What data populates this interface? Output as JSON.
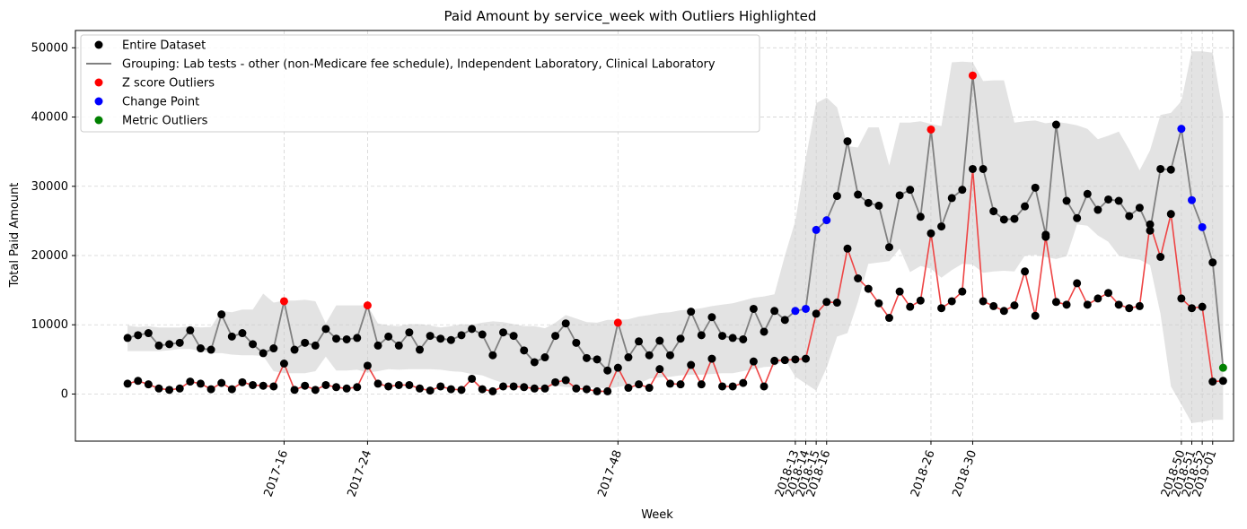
{
  "chart_data": {
    "type": "line",
    "title": "Paid Amount by service_week with Outliers Highlighted",
    "xlabel": "Week",
    "ylabel": "Total Paid Amount",
    "ylim": [
      -6800,
      52500
    ],
    "yticks": [
      0,
      10000,
      20000,
      30000,
      40000,
      50000
    ],
    "x_index_range": [
      -5,
      106
    ],
    "grid": true,
    "legend_position": "top-left",
    "colors": {
      "entire": "#000000",
      "grouping_line": "#808080",
      "subset_line": "#ee4444",
      "zscore": "#ff0000",
      "changepoint": "#0000ff",
      "metric": "#008000",
      "band": "#cccccc"
    },
    "legend": [
      {
        "label": "Entire Dataset",
        "kind": "marker",
        "color": "#000000"
      },
      {
        "label": "Grouping: Lab tests - other (non-Medicare fee schedule), Independent Laboratory, Clinical Laboratory",
        "kind": "line",
        "color": "#808080"
      },
      {
        "label": "Z score Outliers",
        "kind": "marker",
        "color": "#ff0000"
      },
      {
        "label": "Change Point",
        "kind": "marker",
        "color": "#0000ff"
      },
      {
        "label": "Metric Outliers",
        "kind": "marker",
        "color": "#008000"
      }
    ],
    "x_ticks": [
      {
        "index": 15,
        "label": "2017-16"
      },
      {
        "index": 23,
        "label": "2017-24"
      },
      {
        "index": 47,
        "label": "2017-48"
      },
      {
        "index": 64,
        "label": "2018-13"
      },
      {
        "index": 65,
        "label": "2018-14"
      },
      {
        "index": 66,
        "label": "2018-15"
      },
      {
        "index": 67,
        "label": "2018-16"
      },
      {
        "index": 77,
        "label": "2018-26"
      },
      {
        "index": 81,
        "label": "2018-30"
      },
      {
        "index": 101,
        "label": "2018-50"
      },
      {
        "index": 102,
        "label": "2018-51"
      },
      {
        "index": 103,
        "label": "2018-52"
      },
      {
        "index": 104,
        "label": "2019-01"
      }
    ],
    "entire_dataset": [
      8100,
      8500,
      8800,
      7000,
      7200,
      7400,
      9200,
      6600,
      6400,
      11500,
      8300,
      8800,
      7200,
      5900,
      6600,
      13400,
      6400,
      7400,
      7000,
      9400,
      8000,
      7900,
      8100,
      12800,
      7000,
      8300,
      7000,
      8900,
      6400,
      8400,
      8000,
      7800,
      8500,
      9400,
      8600,
      5600,
      8900,
      8400,
      6300,
      4600,
      5300,
      8400,
      10200,
      7400,
      5200,
      5000,
      3400,
      10300,
      5300,
      7600,
      5600,
      7700,
      5600,
      8000,
      11900,
      8500,
      11100,
      8400,
      8100,
      7900,
      12300,
      9000,
      12000,
      10700,
      12000,
      12300,
      23700,
      25100,
      28600,
      36500,
      28800,
      27600,
      27200,
      21200,
      28700,
      29500,
      25600,
      38200,
      24200,
      28300,
      29500,
      46000,
      32500,
      26400,
      25200,
      25300,
      27100,
      29800,
      23000,
      38900,
      27900,
      25400,
      28900,
      26600,
      28100,
      27900,
      25700,
      26900,
      23600,
      32500,
      32400,
      38300,
      28000,
      24100,
      19000,
      3800
    ],
    "grouping_series": [
      1500,
      1900,
      1400,
      800,
      600,
      800,
      1800,
      1500,
      700,
      1600,
      700,
      1700,
      1300,
      1200,
      1100,
      4400,
      600,
      1200,
      600,
      1300,
      1000,
      800,
      1000,
      4100,
      1500,
      1100,
      1300,
      1300,
      800,
      500,
      1100,
      700,
      600,
      2200,
      700,
      400,
      1100,
      1100,
      1000,
      800,
      800,
      1700,
      2000,
      800,
      700,
      400,
      400,
      3800,
      900,
      1400,
      900,
      3600,
      1500,
      1400,
      4200,
      1400,
      5100,
      1100,
      1100,
      1600,
      4700,
      1100,
      4800,
      4900,
      5000,
      5100,
      11600,
      13300,
      13200,
      21000,
      16700,
      15200,
      13100,
      11000,
      14800,
      12600,
      13500,
      23200,
      12400,
      13400,
      14800,
      32500,
      13400,
      12700,
      12000,
      12800,
      17700,
      11300,
      22700,
      13300,
      12900,
      16000,
      12900,
      13800,
      14600,
      12900,
      12400,
      12700,
      24500,
      19800,
      26000,
      13800,
      12400,
      12600,
      1800,
      1900
    ],
    "band": {
      "start_index": 0,
      "upper": [
        9900,
        9700,
        9800,
        9600,
        9600,
        9600,
        9800,
        9600,
        9700,
        12000,
        11800,
        12200,
        12200,
        14500,
        13200,
        13500,
        13500,
        13600,
        13400,
        10200,
        12800,
        12800,
        12800,
        12800,
        10200,
        9900,
        9800,
        10100,
        10100,
        9900,
        9600,
        9800,
        10100,
        10000,
        10300,
        10500,
        10400,
        10100,
        9800,
        9800,
        9500,
        10300,
        11400,
        10900,
        10400,
        10300,
        10700,
        10700,
        10800,
        11200,
        11400,
        11700,
        11800,
        12100,
        12200,
        12400,
        12700,
        12900,
        13100,
        13500,
        13900,
        14100,
        14400,
        20000,
        25000,
        34000,
        42000,
        42800,
        41400,
        35800,
        35600,
        38500,
        38500,
        33000,
        39200,
        39200,
        39400,
        39000,
        38700,
        47900,
        48000,
        47900,
        45200,
        45300,
        45300,
        39200,
        39400,
        39500,
        39100,
        39300,
        39100,
        38800,
        38300,
        36800,
        37300,
        37900,
        35300,
        32300,
        35200,
        40300,
        40600,
        42300,
        49500,
        49500,
        49300,
        40500
      ],
      "lower": [
        6200,
        6200,
        6200,
        6200,
        6300,
        6500,
        6500,
        6200,
        5900,
        5900,
        5700,
        5600,
        5600,
        5500,
        3300,
        3000,
        3000,
        3000,
        3300,
        5400,
        3400,
        3400,
        3500,
        3100,
        3300,
        3600,
        3500,
        3600,
        3600,
        3600,
        3500,
        3300,
        3200,
        2900,
        2700,
        2100,
        1600,
        1300,
        1100,
        1100,
        1000,
        1200,
        1000,
        1000,
        1000,
        900,
        800,
        1000,
        1300,
        1500,
        2200,
        2400,
        2500,
        2700,
        2800,
        2800,
        2900,
        3000,
        3000,
        3300,
        3600,
        3900,
        4000,
        5000,
        2500,
        1500,
        500,
        3800,
        8300,
        8800,
        13300,
        18800,
        19000,
        19200,
        21000,
        17600,
        18500,
        18100,
        16800,
        17900,
        18800,
        18700,
        17500,
        17700,
        17800,
        17700,
        20000,
        20100,
        19800,
        19500,
        19900,
        24500,
        24300,
        22900,
        22000,
        20000,
        19600,
        19400,
        18600,
        11600,
        1100,
        -1500,
        -4200,
        -4000,
        -3700,
        -3700
      ]
    },
    "zscore_outliers": [
      15,
      23,
      47,
      77,
      81
    ],
    "change_points": [
      64,
      65,
      66,
      67,
      101,
      102,
      103
    ],
    "metric_outliers": [
      105
    ]
  }
}
